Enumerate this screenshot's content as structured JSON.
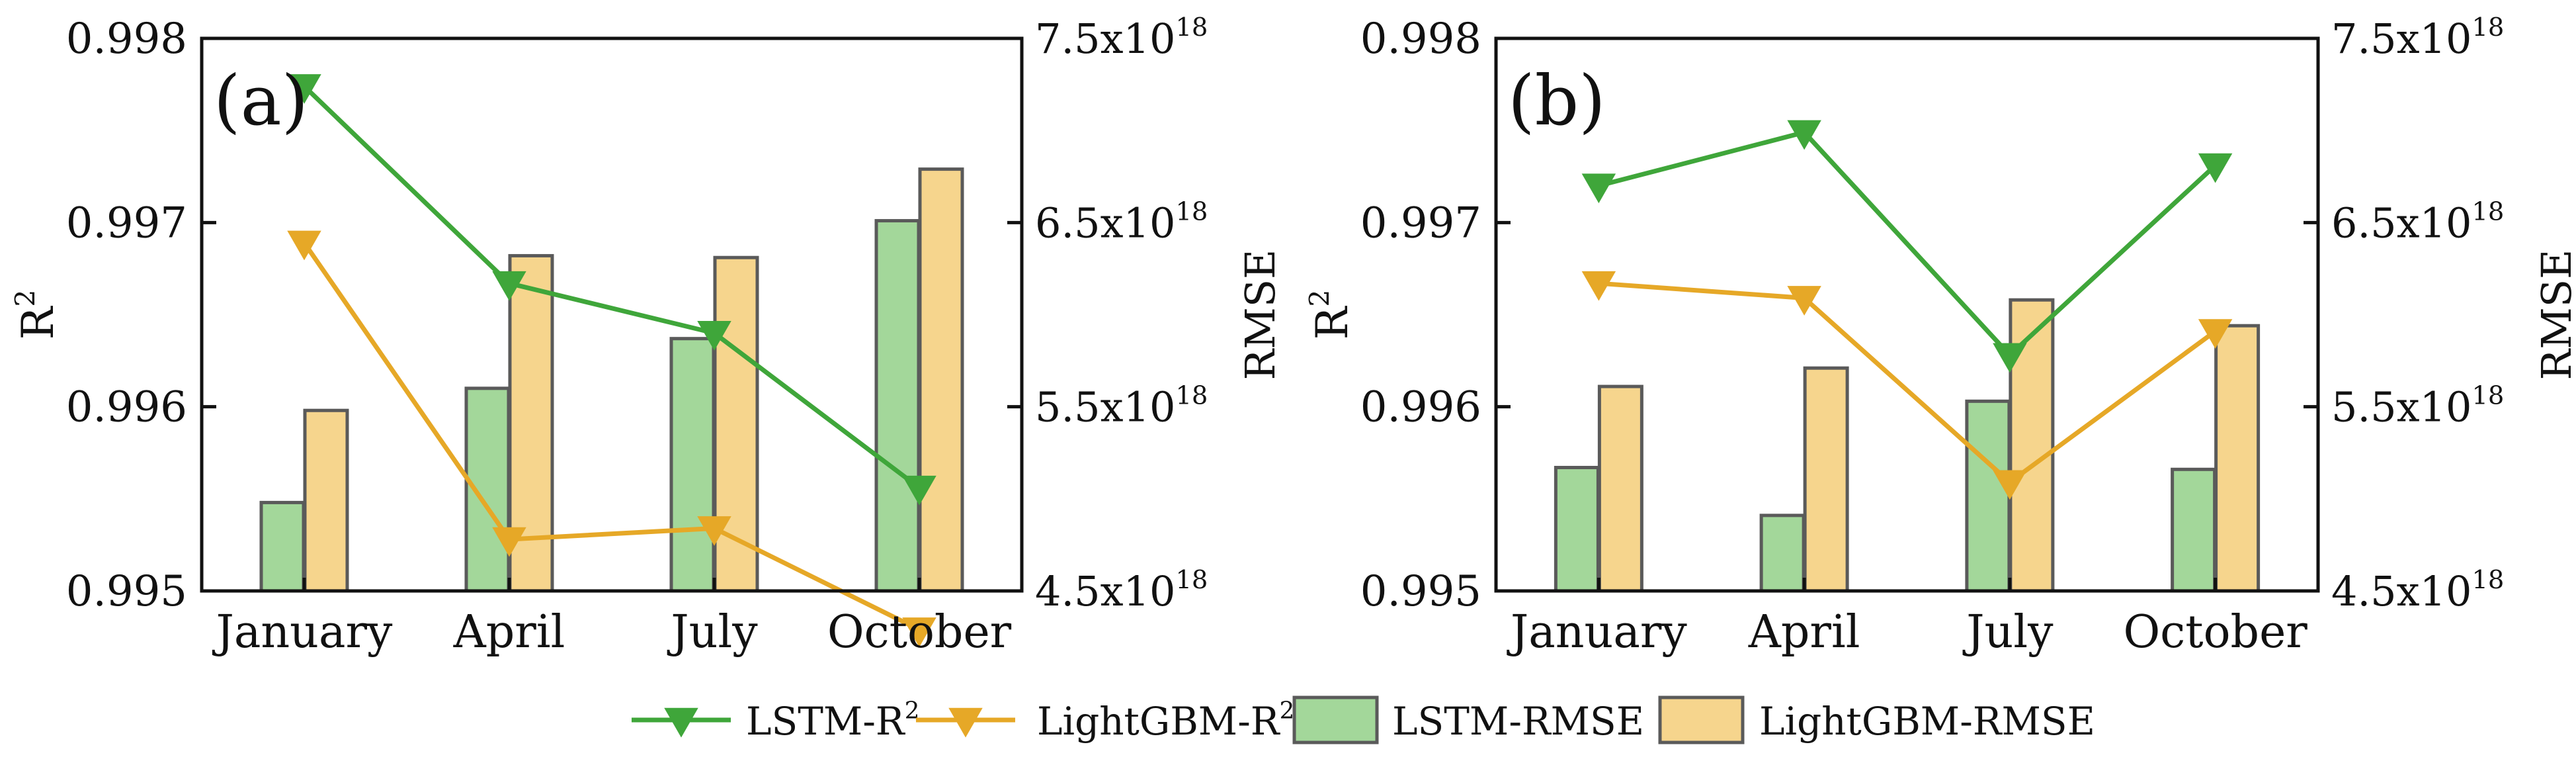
{
  "colors": {
    "lstm_line": "#3fa63a",
    "lightgbm_line": "#e6a827",
    "lstm_bar": "#a3d79a",
    "lightgbm_bar": "#f6d58d",
    "bar_edge": "#5a5a5a",
    "axis": "#111111"
  },
  "legend": {
    "items": [
      {
        "label": "LSTM-R",
        "sup": "2",
        "kind": "line",
        "color_key": "lstm_line"
      },
      {
        "label": "LightGBM-R",
        "sup": "2",
        "kind": "line",
        "color_key": "lightgbm_line"
      },
      {
        "label": "LSTM-RMSE",
        "sup": "",
        "kind": "bar",
        "color_key": "lstm_bar"
      },
      {
        "label": "LightGBM-RMSE",
        "sup": "",
        "kind": "bar",
        "color_key": "lightgbm_bar"
      }
    ]
  },
  "chart_data": [
    {
      "type": "bar+line",
      "panel_label": "(a)",
      "categories": [
        "January",
        "April",
        "July",
        "October"
      ],
      "left_axis": {
        "label": "R",
        "label_sup": "2",
        "ylim": [
          0.995,
          0.998
        ],
        "ticks": [
          {
            "value": 0.995,
            "text": "0.995"
          },
          {
            "value": 0.996,
            "text": "0.996"
          },
          {
            "value": 0.997,
            "text": "0.997"
          },
          {
            "value": 0.998,
            "text": "0.998"
          }
        ]
      },
      "right_axis": {
        "label": "RMSE",
        "ylim": [
          4.5e+18,
          7.5e+18
        ],
        "ticks": [
          {
            "value": 4.5e+18,
            "base": "4.5x10",
            "exp": "18"
          },
          {
            "value": 5.5e+18,
            "base": "5.5x10",
            "exp": "18"
          },
          {
            "value": 6.5e+18,
            "base": "6.5x10",
            "exp": "18"
          },
          {
            "value": 7.5e+18,
            "base": "7.5x10",
            "exp": "18"
          }
        ]
      },
      "series": [
        {
          "name": "LSTM-R2",
          "kind": "line",
          "axis": "left",
          "values": [
            0.99774,
            0.99667,
            0.9964,
            0.99556
          ]
        },
        {
          "name": "LightGBM-R2",
          "kind": "line",
          "axis": "left",
          "values": [
            0.99689,
            0.99528,
            0.99534,
            0.99479
          ]
        },
        {
          "name": "LSTM-RMSE",
          "kind": "bar",
          "axis": "right",
          "values": [
            4.98e+18,
            5.6e+18,
            5.87e+18,
            6.51e+18
          ]
        },
        {
          "name": "LightGBM-RMSE",
          "kind": "bar",
          "axis": "right",
          "values": [
            5.48e+18,
            6.32e+18,
            6.31e+18,
            6.79e+18
          ]
        }
      ]
    },
    {
      "type": "bar+line",
      "panel_label": "(b)",
      "categories": [
        "January",
        "April",
        "July",
        "October"
      ],
      "left_axis": {
        "label": "R",
        "label_sup": "2",
        "ylim": [
          0.995,
          0.998
        ],
        "ticks": [
          {
            "value": 0.995,
            "text": "0.995"
          },
          {
            "value": 0.996,
            "text": "0.996"
          },
          {
            "value": 0.997,
            "text": "0.997"
          },
          {
            "value": 0.998,
            "text": "0.998"
          }
        ]
      },
      "right_axis": {
        "label": "RMSE",
        "ylim": [
          4.5e+18,
          7.5e+18
        ],
        "ticks": [
          {
            "value": 4.5e+18,
            "base": "4.5x10",
            "exp": "18"
          },
          {
            "value": 5.5e+18,
            "base": "5.5x10",
            "exp": "18"
          },
          {
            "value": 6.5e+18,
            "base": "6.5x10",
            "exp": "18"
          },
          {
            "value": 7.5e+18,
            "base": "7.5x10",
            "exp": "18"
          }
        ]
      },
      "series": [
        {
          "name": "LSTM-R2",
          "kind": "line",
          "axis": "left",
          "values": [
            0.9972,
            0.99749,
            0.99628,
            0.99731
          ]
        },
        {
          "name": "LightGBM-R2",
          "kind": "line",
          "axis": "left",
          "values": [
            0.99667,
            0.99659,
            0.99559,
            0.99641
          ]
        },
        {
          "name": "LSTM-RMSE",
          "kind": "bar",
          "axis": "right",
          "values": [
            5.17e+18,
            4.91e+18,
            5.53e+18,
            5.16e+18
          ]
        },
        {
          "name": "LightGBM-RMSE",
          "kind": "bar",
          "axis": "right",
          "values": [
            5.61e+18,
            5.71e+18,
            6.08e+18,
            5.94e+18
          ]
        }
      ]
    }
  ]
}
